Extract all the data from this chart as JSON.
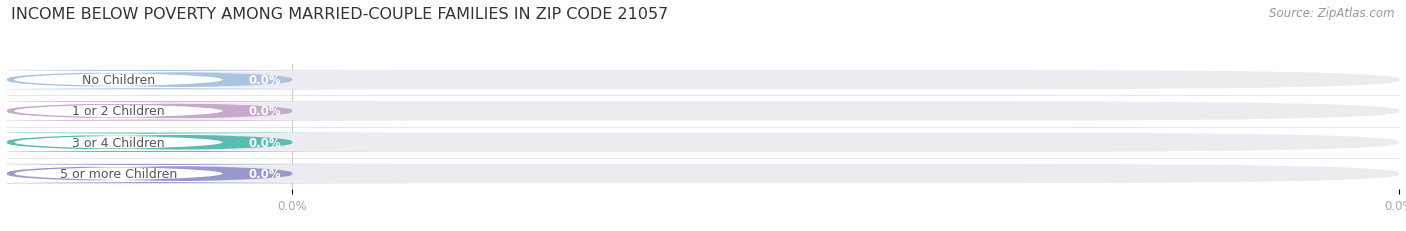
{
  "title": "INCOME BELOW POVERTY AMONG MARRIED-COUPLE FAMILIES IN ZIP CODE 21057",
  "source": "Source: ZipAtlas.com",
  "categories": [
    "No Children",
    "1 or 2 Children",
    "3 or 4 Children",
    "5 or more Children"
  ],
  "values": [
    0.0,
    0.0,
    0.0,
    0.0
  ],
  "bar_colors": [
    "#aac4df",
    "#c8a8cc",
    "#5bbdb0",
    "#9898cc"
  ],
  "label_bg_colors": [
    "#dce8f5",
    "#e8d8ee",
    "#c0e8e4",
    "#d8d8ec"
  ],
  "bar_bg_color": "#ebebf0",
  "background_color": "#ffffff",
  "title_fontsize": 11.5,
  "source_fontsize": 8.5,
  "label_fontsize": 9,
  "value_fontsize": 8.5,
  "tick_fontsize": 8.5,
  "label_text_color": "#555566",
  "value_text_color": "#ffffff",
  "tick_color": "#aaaaaa"
}
